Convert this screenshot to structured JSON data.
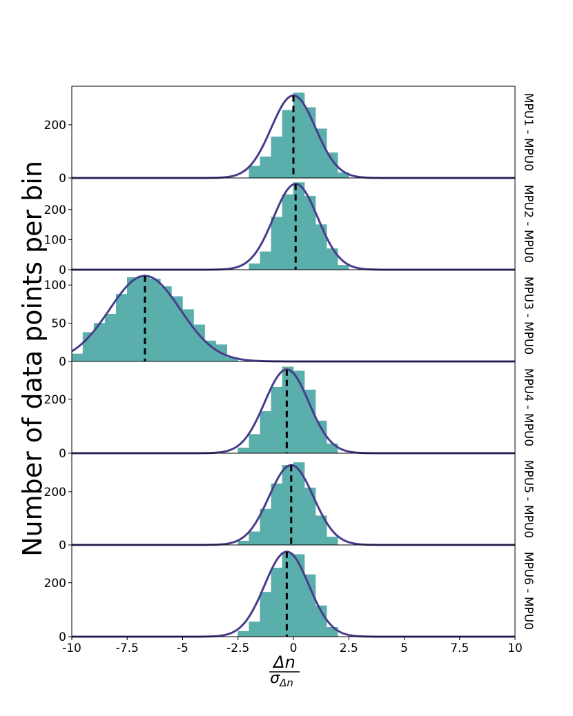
{
  "figure": {
    "ylabel": "Number of data points per bin",
    "xlabel_numerator": "Δn",
    "xlabel_denominator": "σ",
    "xlabel_denominator_sub": "Δn",
    "xtick_labels": [
      "-10",
      "-7.5",
      "-5",
      "-2.5",
      "0",
      "2.5",
      "5",
      "7.5",
      "10"
    ],
    "colors": {
      "bar": "#5aaeac",
      "curve": "#483d8b",
      "mean_line": "#000000",
      "frame": "#000000"
    }
  },
  "chart_data": [
    {
      "type": "bar",
      "panel_label": "MPU1 - MPU0",
      "bin_width": 0.5,
      "bin_left_edges": [
        -1.5,
        -1.0,
        -0.5,
        0.0,
        0.5,
        1.0,
        1.5
      ],
      "counts": [
        80,
        155,
        255,
        320,
        265,
        185,
        95
      ],
      "extra_bins": [
        {
          "x": -2.0,
          "count": 45
        },
        {
          "x": 2.0,
          "count": 20
        }
      ],
      "mean": 0.0,
      "sigma": 1.0,
      "fit_peak": 310,
      "ylim": [
        0,
        345
      ],
      "yticks": [
        0,
        200
      ],
      "xlim": [
        -10,
        10
      ]
    },
    {
      "type": "bar",
      "panel_label": "MPU2 - MPU0",
      "bin_width": 0.5,
      "bin_left_edges": [
        -1.5,
        -1.0,
        -0.5,
        0.0,
        0.5,
        1.0,
        1.5
      ],
      "counts": [
        60,
        175,
        250,
        290,
        245,
        150,
        70
      ],
      "extra_bins": [
        {
          "x": -2.0,
          "count": 20
        },
        {
          "x": 2.0,
          "count": 15
        }
      ],
      "mean": 0.1,
      "sigma": 1.0,
      "fit_peak": 285,
      "ylim": [
        0,
        305
      ],
      "yticks": [
        0,
        100,
        200
      ],
      "xlim": [
        -10,
        10
      ]
    },
    {
      "type": "bar",
      "panel_label": "MPU3 - MPU0",
      "bin_width": 0.5,
      "bin_left_edges": [
        -10.0,
        -9.5,
        -9.0,
        -8.5,
        -8.0,
        -7.5,
        -7.0,
        -6.5,
        -6.0,
        -5.5,
        -5.0,
        -4.5,
        -4.0,
        -3.5
      ],
      "counts": [
        10,
        38,
        50,
        62,
        88,
        110,
        112,
        108,
        98,
        85,
        68,
        48,
        27,
        22
      ],
      "extra_bins": [
        {
          "x": -3.0,
          "count": 5
        }
      ],
      "mean": -6.7,
      "sigma": 1.6,
      "fit_peak": 112,
      "ylim": [
        0,
        120
      ],
      "yticks": [
        0,
        50,
        100
      ],
      "xlim": [
        -10,
        10
      ]
    },
    {
      "type": "bar",
      "panel_label": "MPU4 - MPU0",
      "bin_width": 0.5,
      "bin_left_edges": [
        -2.0,
        -1.5,
        -1.0,
        -0.5,
        0.0,
        0.5,
        1.0,
        1.5
      ],
      "counts": [
        70,
        155,
        245,
        320,
        305,
        235,
        120,
        35
      ],
      "extra_bins": [
        {
          "x": -2.5,
          "count": 20
        }
      ],
      "mean": -0.3,
      "sigma": 1.0,
      "fit_peak": 310,
      "ylim": [
        0,
        340
      ],
      "yticks": [
        0,
        200
      ],
      "xlim": [
        -10,
        10
      ]
    },
    {
      "type": "bar",
      "panel_label": "MPU5 - MPU0",
      "bin_width": 0.5,
      "bin_left_edges": [
        -2.0,
        -1.5,
        -1.0,
        -0.5,
        0.0,
        0.5,
        1.0,
        1.5
      ],
      "counts": [
        50,
        135,
        230,
        300,
        310,
        215,
        110,
        30
      ],
      "extra_bins": [
        {
          "x": -2.5,
          "count": 15
        }
      ],
      "mean": -0.1,
      "sigma": 1.0,
      "fit_peak": 300,
      "ylim": [
        0,
        345
      ],
      "yticks": [
        0,
        200
      ],
      "xlim": [
        -10,
        10
      ]
    },
    {
      "type": "bar",
      "panel_label": "MPU6 - MPU0",
      "bin_width": 0.5,
      "bin_left_edges": [
        -2.0,
        -1.5,
        -1.0,
        -0.5,
        0.0,
        0.5,
        1.0,
        1.5
      ],
      "counts": [
        55,
        165,
        255,
        310,
        305,
        230,
        115,
        35
      ],
      "extra_bins": [
        {
          "x": -2.5,
          "count": 20
        }
      ],
      "mean": -0.3,
      "sigma": 1.0,
      "fit_peak": 315,
      "ylim": [
        0,
        340
      ],
      "yticks": [
        0,
        200
      ],
      "xlim": [
        -10,
        10
      ]
    }
  ]
}
